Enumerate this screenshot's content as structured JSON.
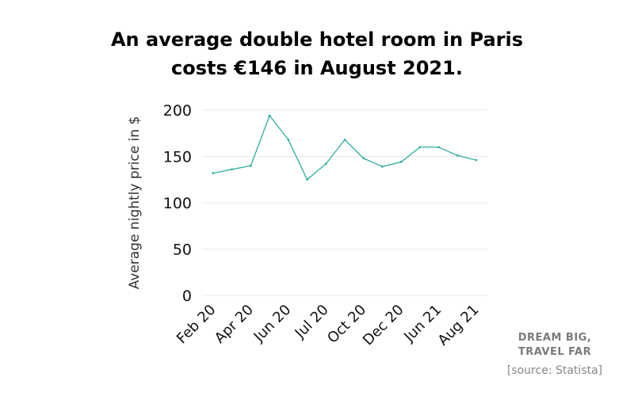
{
  "title_lines": [
    "An average double hotel room in Paris",
    "costs €146 in August 2021."
  ],
  "brand": [
    "DREAM BIG,",
    "TRAVEL FAR"
  ],
  "source": "[source: Statista]",
  "chart_data": {
    "type": "line",
    "title": "An average double hotel room in Paris costs €146 in August 2021.",
    "xlabel": "",
    "ylabel": "Average nightly  price in $",
    "ylim": [
      0,
      200
    ],
    "yticks": [
      0,
      50,
      100,
      150,
      200
    ],
    "grid": true,
    "line_color": "#20a99a",
    "x_tick_labels": [
      "Feb 20",
      "Apr 20",
      "Jun 20",
      "Jul 20",
      "Oct 20",
      "Dec 20",
      "Jun 21",
      "Aug 21"
    ],
    "values": [
      132,
      136,
      140,
      194,
      168,
      125,
      142,
      168,
      148,
      139,
      144,
      160,
      160,
      151,
      146
    ]
  }
}
